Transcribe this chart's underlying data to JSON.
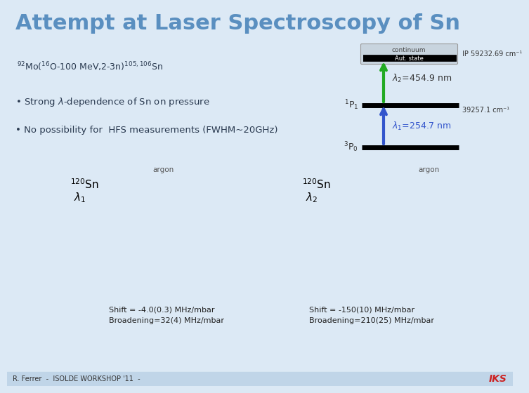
{
  "title": "Attempt at Laser Spectroscopy of Sn",
  "title_color": "#5a8fc0",
  "title_bg": "#dce9f5",
  "bg_color": "#dce9f5",
  "footer_bg": "#c0d5e8",
  "reaction_text": "$^{92}$Mo($^{16}$O-100 MeV,2-3n)$^{105,106}$Sn",
  "bullet1": "Strong $\\lambda$-dependence of Sn on pressure",
  "bullet2": "No possibility for  HFS measurements (FWHM~20GHz)",
  "continuum_label": "continuum",
  "aut_state_label": "Aut. state",
  "ip_label": "IP 59232.69 cm⁻¹",
  "lambda2_label": "$\\lambda_2$=454.9 nm",
  "level1_label": "$^1$P$_1$",
  "level1_energy": "39257.1 cm⁻¹",
  "lambda1_label": "$\\lambda_1$=254.7 nm",
  "level0_label": "$^3$P$_0$",
  "argon_left": "argon",
  "argon_right": "argon",
  "sn_left_label": "$^{120}$Sn",
  "sn_left_lambda": "$\\lambda_1$",
  "sn_right_label": "$^{120}$Sn",
  "sn_right_lambda": "$\\lambda_2$",
  "shift_left_line1": "Shift = -4.0(0.3) MHz/mbar",
  "shift_left_line2": "Broadening=32(4) MHz/mbar",
  "shift_right_line1": "Shift = -150(10) MHz/mbar",
  "shift_right_line2": "Broadening=210(25) MHz/mbar",
  "footer_text": "R. Ferrer  -  ISOLDE WORKSHOP '11  -",
  "iks_text": "IKS",
  "arrow_blue_color": "#3355cc",
  "arrow_green_color": "#22aa22",
  "level_line_color": "#000000",
  "box_fill": "#c8d4de",
  "box_edge": "#999999",
  "text_dark": "#2a3a50",
  "text_black": "#000000"
}
